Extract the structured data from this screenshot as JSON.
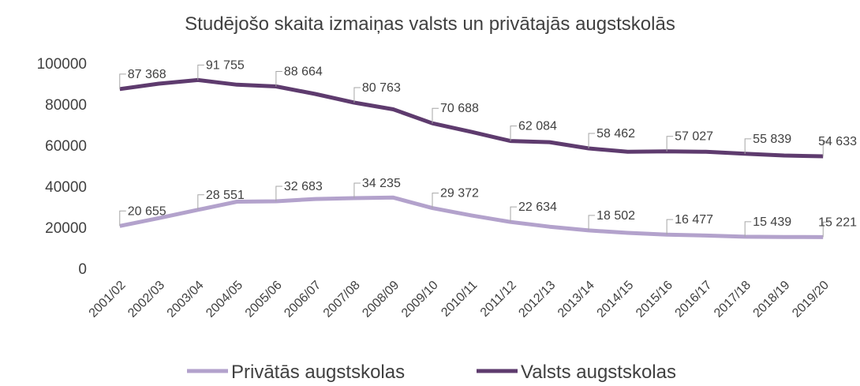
{
  "chart_data": {
    "type": "line",
    "title": "Studējošo skaita izmaiņas valsts un privātajās augstskolās",
    "categories": [
      "2001/02",
      "2002/03",
      "2003/04",
      "2004/05",
      "2005/06",
      "2006/07",
      "2007/08",
      "2008/09",
      "2009/10",
      "2010/11",
      "2011/12",
      "2012/13",
      "2013/14",
      "2014/15",
      "2015/16",
      "2016/17",
      "2017/18",
      "2018/19",
      "2019/20"
    ],
    "series": [
      {
        "name": "Privātās augstskolas",
        "color": "#b3a2cc",
        "values": [
          20655,
          24500,
          28551,
          32500,
          32683,
          33800,
          34235,
          34500,
          29372,
          25800,
          22634,
          20300,
          18502,
          17300,
          16477,
          16000,
          15439,
          15300,
          15221
        ],
        "value_labels": [
          "20 655",
          null,
          "28 551",
          null,
          "32 683",
          null,
          "34 235",
          null,
          "29 372",
          null,
          "22 634",
          null,
          "18 502",
          null,
          "16 477",
          null,
          "15 439",
          null,
          "15 221"
        ]
      },
      {
        "name": "Valsts augstskolas",
        "color": "#5e3b6e",
        "values": [
          87368,
          90000,
          91755,
          89500,
          88664,
          85000,
          80763,
          77500,
          70688,
          66500,
          62084,
          61500,
          58462,
          56800,
          57027,
          56800,
          55839,
          55000,
          54633
        ],
        "value_labels": [
          "87 368",
          null,
          "91 755",
          null,
          "88 664",
          null,
          "80 763",
          null,
          "70 688",
          null,
          "62 084",
          null,
          "58 462",
          null,
          "57 027",
          null,
          "55 839",
          null,
          "54 633"
        ]
      }
    ],
    "ylim": [
      0,
      100000
    ],
    "yticks": [
      0,
      20000,
      40000,
      60000,
      80000,
      100000
    ],
    "grid": false,
    "legend": "bottom"
  }
}
